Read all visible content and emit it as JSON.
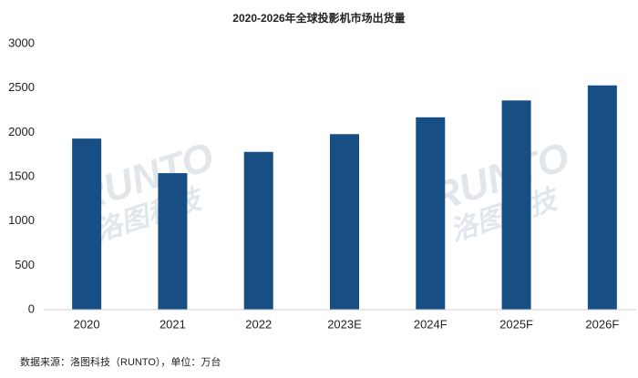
{
  "chart_data": {
    "type": "bar",
    "title": "2020-2026年全球投影机市场出货量",
    "categories": [
      "2020",
      "2021",
      "2022",
      "2023E",
      "2024F",
      "2025F",
      "2026F"
    ],
    "values": [
      1930,
      1540,
      1780,
      1980,
      2170,
      2360,
      2530
    ],
    "color": "#174e84",
    "ylim": [
      0,
      3000
    ],
    "yticks": [
      0,
      500,
      1000,
      1500,
      2000,
      2500,
      3000
    ],
    "grid": false,
    "source": "数据来源：洛图科技（RUNTO），单位：万台",
    "watermark": {
      "brand": "RUNTO",
      "name": "洛图科技"
    }
  }
}
